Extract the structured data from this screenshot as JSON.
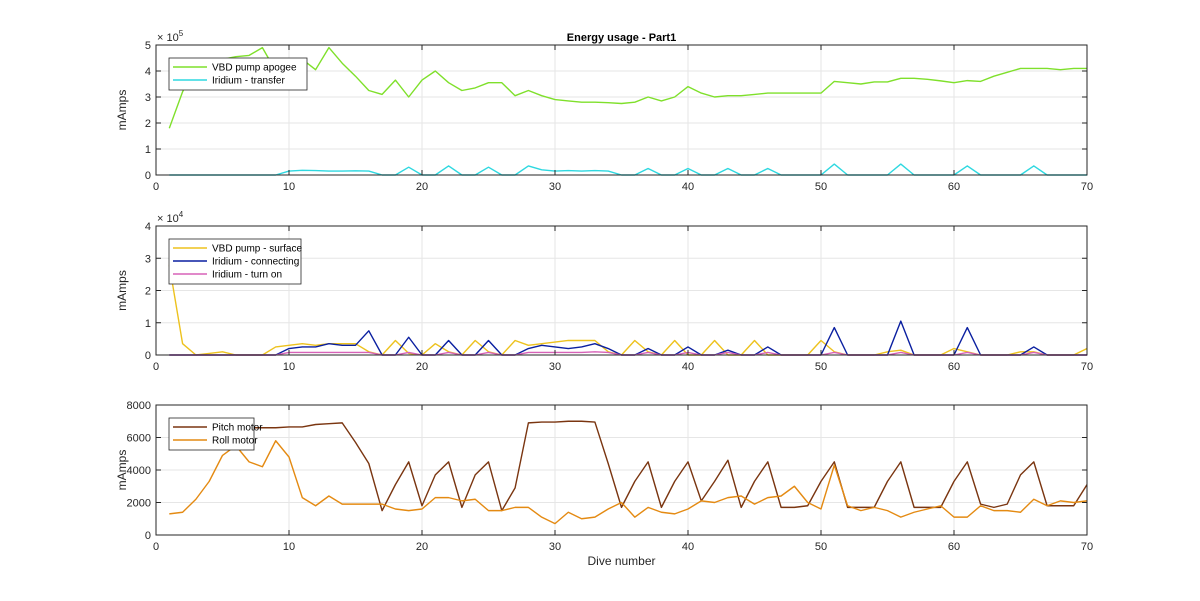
{
  "chart_data": [
    {
      "type": "line",
      "title": "Energy usage - Part1",
      "xlabel": "",
      "ylabel": "mAmps",
      "xlim": [
        0,
        70
      ],
      "ylim": [
        0,
        500000
      ],
      "y_multiplier": "× 10^5",
      "y_multiplier_base": "× 10",
      "y_multiplier_exp": "5",
      "xticks": [
        0,
        10,
        20,
        30,
        40,
        50,
        60,
        70
      ],
      "yticks": [
        0,
        100000,
        200000,
        300000,
        400000,
        500000
      ],
      "ytick_labels": [
        "0",
        "1",
        "2",
        "3",
        "4",
        "5"
      ],
      "grid": true,
      "legend": "top-left",
      "x": [
        1,
        2,
        3,
        4,
        5,
        6,
        7,
        8,
        9,
        10,
        11,
        12,
        13,
        14,
        15,
        16,
        17,
        18,
        19,
        20,
        21,
        22,
        23,
        24,
        25,
        26,
        27,
        28,
        29,
        30,
        31,
        32,
        33,
        34,
        35,
        36,
        37,
        38,
        39,
        40,
        41,
        42,
        43,
        44,
        45,
        46,
        47,
        48,
        49,
        50,
        51,
        52,
        53,
        54,
        55,
        56,
        57,
        58,
        59,
        60,
        61,
        62,
        63,
        64,
        65,
        66,
        67,
        68,
        69,
        70
      ],
      "series": [
        {
          "name": "VBD pump apogee",
          "color": "#7FE02B",
          "values": [
            180000,
            320000,
            430000,
            440000,
            445000,
            455000,
            460000,
            490000,
            400000,
            420000,
            445000,
            405000,
            490000,
            430000,
            380000,
            325000,
            310000,
            365000,
            300000,
            365000,
            400000,
            355000,
            325000,
            335000,
            355000,
            355000,
            305000,
            325000,
            305000,
            290000,
            285000,
            280000,
            280000,
            278000,
            275000,
            280000,
            300000,
            285000,
            300000,
            340000,
            315000,
            300000,
            305000,
            305000,
            310000,
            315000,
            315000,
            315000,
            315000,
            315000,
            360000,
            355000,
            350000,
            358000,
            358000,
            372000,
            372000,
            368000,
            362000,
            355000,
            363000,
            360000,
            380000,
            395000,
            410000,
            410000,
            410000,
            405000,
            410000,
            410000
          ]
        },
        {
          "name": "Iridium - transfer",
          "color": "#2ED8E0",
          "values": [
            0,
            0,
            0,
            0,
            0,
            0,
            0,
            0,
            0,
            15000,
            18000,
            17000,
            15000,
            15000,
            16000,
            15000,
            0,
            0,
            30000,
            0,
            0,
            35000,
            0,
            0,
            30000,
            0,
            0,
            35000,
            20000,
            15000,
            17000,
            15000,
            17000,
            15000,
            0,
            0,
            25000,
            0,
            0,
            25000,
            0,
            0,
            25000,
            0,
            0,
            25000,
            0,
            0,
            0,
            0,
            42000,
            0,
            0,
            0,
            0,
            42000,
            0,
            0,
            0,
            0,
            35000,
            0,
            0,
            0,
            0,
            35000,
            0,
            0,
            0,
            0
          ]
        }
      ]
    },
    {
      "type": "line",
      "title": "",
      "xlabel": "",
      "ylabel": "mAmps",
      "xlim": [
        0,
        70
      ],
      "ylim": [
        0,
        40000
      ],
      "y_multiplier": "× 10^4",
      "y_multiplier_base": "× 10",
      "y_multiplier_exp": "4",
      "xticks": [
        0,
        10,
        20,
        30,
        40,
        50,
        60,
        70
      ],
      "yticks": [
        0,
        10000,
        20000,
        30000,
        40000
      ],
      "ytick_labels": [
        "0",
        "1",
        "2",
        "3",
        "4"
      ],
      "grid": true,
      "legend": "top-left",
      "x": [
        1,
        2,
        3,
        4,
        5,
        6,
        7,
        8,
        9,
        10,
        11,
        12,
        13,
        14,
        15,
        16,
        17,
        18,
        19,
        20,
        21,
        22,
        23,
        24,
        25,
        26,
        27,
        28,
        29,
        30,
        31,
        32,
        33,
        34,
        35,
        36,
        37,
        38,
        39,
        40,
        41,
        42,
        43,
        44,
        45,
        46,
        47,
        48,
        49,
        50,
        51,
        52,
        53,
        54,
        55,
        56,
        57,
        58,
        59,
        60,
        61,
        62,
        63,
        64,
        65,
        66,
        67,
        68,
        69,
        70
      ],
      "series": [
        {
          "name": "VBD pump - surface",
          "color": "#EDC21E",
          "values": [
            28000,
            3500,
            0,
            500,
            1000,
            0,
            0,
            0,
            2500,
            3000,
            3500,
            3000,
            3500,
            3500,
            3500,
            1000,
            0,
            4500,
            500,
            0,
            3500,
            1000,
            0,
            4500,
            1000,
            0,
            4500,
            3000,
            3500,
            4000,
            4500,
            4500,
            4500,
            1000,
            0,
            4500,
            1000,
            0,
            4500,
            0,
            0,
            4500,
            0,
            0,
            4500,
            0,
            0,
            0,
            0,
            4500,
            1000,
            0,
            0,
            0,
            1000,
            1500,
            0,
            0,
            0,
            2000,
            1000,
            0,
            0,
            0,
            1000,
            1000,
            0,
            0,
            0,
            2000
          ]
        },
        {
          "name": "Iridium - connecting",
          "color": "#0A1FA0",
          "values": [
            0,
            0,
            0,
            0,
            0,
            0,
            0,
            0,
            0,
            2000,
            2500,
            2500,
            3500,
            3000,
            3000,
            7500,
            0,
            0,
            5500,
            0,
            0,
            4500,
            0,
            0,
            4500,
            0,
            0,
            2000,
            3000,
            2500,
            2000,
            2500,
            3500,
            2000,
            0,
            0,
            2000,
            0,
            0,
            2500,
            0,
            0,
            1500,
            0,
            0,
            2500,
            0,
            0,
            0,
            0,
            8500,
            0,
            0,
            0,
            0,
            10500,
            0,
            0,
            0,
            0,
            8500,
            0,
            0,
            0,
            0,
            2500,
            0,
            0,
            0,
            0
          ]
        },
        {
          "name": "Iridium - turn on",
          "color": "#D762B8",
          "values": [
            0,
            0,
            0,
            0,
            0,
            0,
            0,
            0,
            0,
            800,
            800,
            800,
            800,
            800,
            800,
            800,
            0,
            0,
            800,
            0,
            0,
            800,
            0,
            0,
            800,
            0,
            0,
            800,
            800,
            800,
            800,
            800,
            1000,
            800,
            0,
            0,
            800,
            0,
            0,
            800,
            0,
            0,
            800,
            0,
            0,
            800,
            0,
            0,
            0,
            0,
            800,
            0,
            0,
            0,
            0,
            800,
            0,
            0,
            0,
            0,
            800,
            0,
            0,
            0,
            0,
            800,
            0,
            0,
            0,
            0
          ]
        }
      ]
    },
    {
      "type": "line",
      "title": "",
      "xlabel": "Dive number",
      "ylabel": "mAmps",
      "xlim": [
        0,
        70
      ],
      "ylim": [
        0,
        8000
      ],
      "xticks": [
        0,
        10,
        20,
        30,
        40,
        50,
        60,
        70
      ],
      "yticks": [
        0,
        2000,
        4000,
        6000,
        8000
      ],
      "ytick_labels": [
        "0",
        "2000",
        "4000",
        "6000",
        "8000"
      ],
      "grid": true,
      "legend": "top-left",
      "x": [
        1,
        2,
        3,
        4,
        5,
        6,
        7,
        8,
        9,
        10,
        11,
        12,
        13,
        14,
        15,
        16,
        17,
        18,
        19,
        20,
        21,
        22,
        23,
        24,
        25,
        26,
        27,
        28,
        29,
        30,
        31,
        32,
        33,
        34,
        35,
        36,
        37,
        38,
        39,
        40,
        41,
        42,
        43,
        44,
        45,
        46,
        47,
        48,
        49,
        50,
        51,
        52,
        53,
        54,
        55,
        56,
        57,
        58,
        59,
        60,
        61,
        62,
        63,
        64,
        65,
        66,
        67,
        68,
        69,
        70
      ],
      "series": [
        {
          "name": "Pitch motor",
          "color": "#7A3510",
          "values": [
            6600,
            6600,
            6600,
            6600,
            6600,
            6600,
            6600,
            6600,
            6600,
            6650,
            6650,
            6800,
            6850,
            6900,
            5700,
            4400,
            1500,
            3100,
            4500,
            1800,
            3700,
            4500,
            1700,
            3700,
            4500,
            1500,
            2900,
            6900,
            6950,
            6950,
            7000,
            7000,
            6950,
            4400,
            1700,
            3300,
            4500,
            1700,
            3300,
            4500,
            2100,
            3300,
            4600,
            1700,
            3300,
            4500,
            1700,
            1700,
            1800,
            3300,
            4500,
            1700,
            1700,
            1700,
            3300,
            4500,
            1700,
            1700,
            1700,
            3300,
            4500,
            1900,
            1700,
            1900,
            3700,
            4500,
            1800,
            1800,
            1800,
            3100
          ]
        },
        {
          "name": "Roll motor",
          "color": "#E48A12",
          "values": [
            1300,
            1400,
            2200,
            3300,
            4900,
            5500,
            4500,
            4200,
            5800,
            4800,
            2300,
            1800,
            2400,
            1900,
            1900,
            1900,
            1900,
            1600,
            1500,
            1600,
            2300,
            2300,
            2100,
            2200,
            1500,
            1500,
            1700,
            1700,
            1100,
            700,
            1400,
            1000,
            1100,
            1600,
            2000,
            1100,
            1700,
            1400,
            1300,
            1600,
            2100,
            2000,
            2300,
            2400,
            1900,
            2300,
            2400,
            3000,
            2000,
            1600,
            4300,
            1800,
            1500,
            1700,
            1500,
            1100,
            1400,
            1600,
            1800,
            1100,
            1100,
            1800,
            1500,
            1500,
            1400,
            2200,
            1800,
            2100,
            2000,
            2100
          ]
        }
      ]
    }
  ]
}
